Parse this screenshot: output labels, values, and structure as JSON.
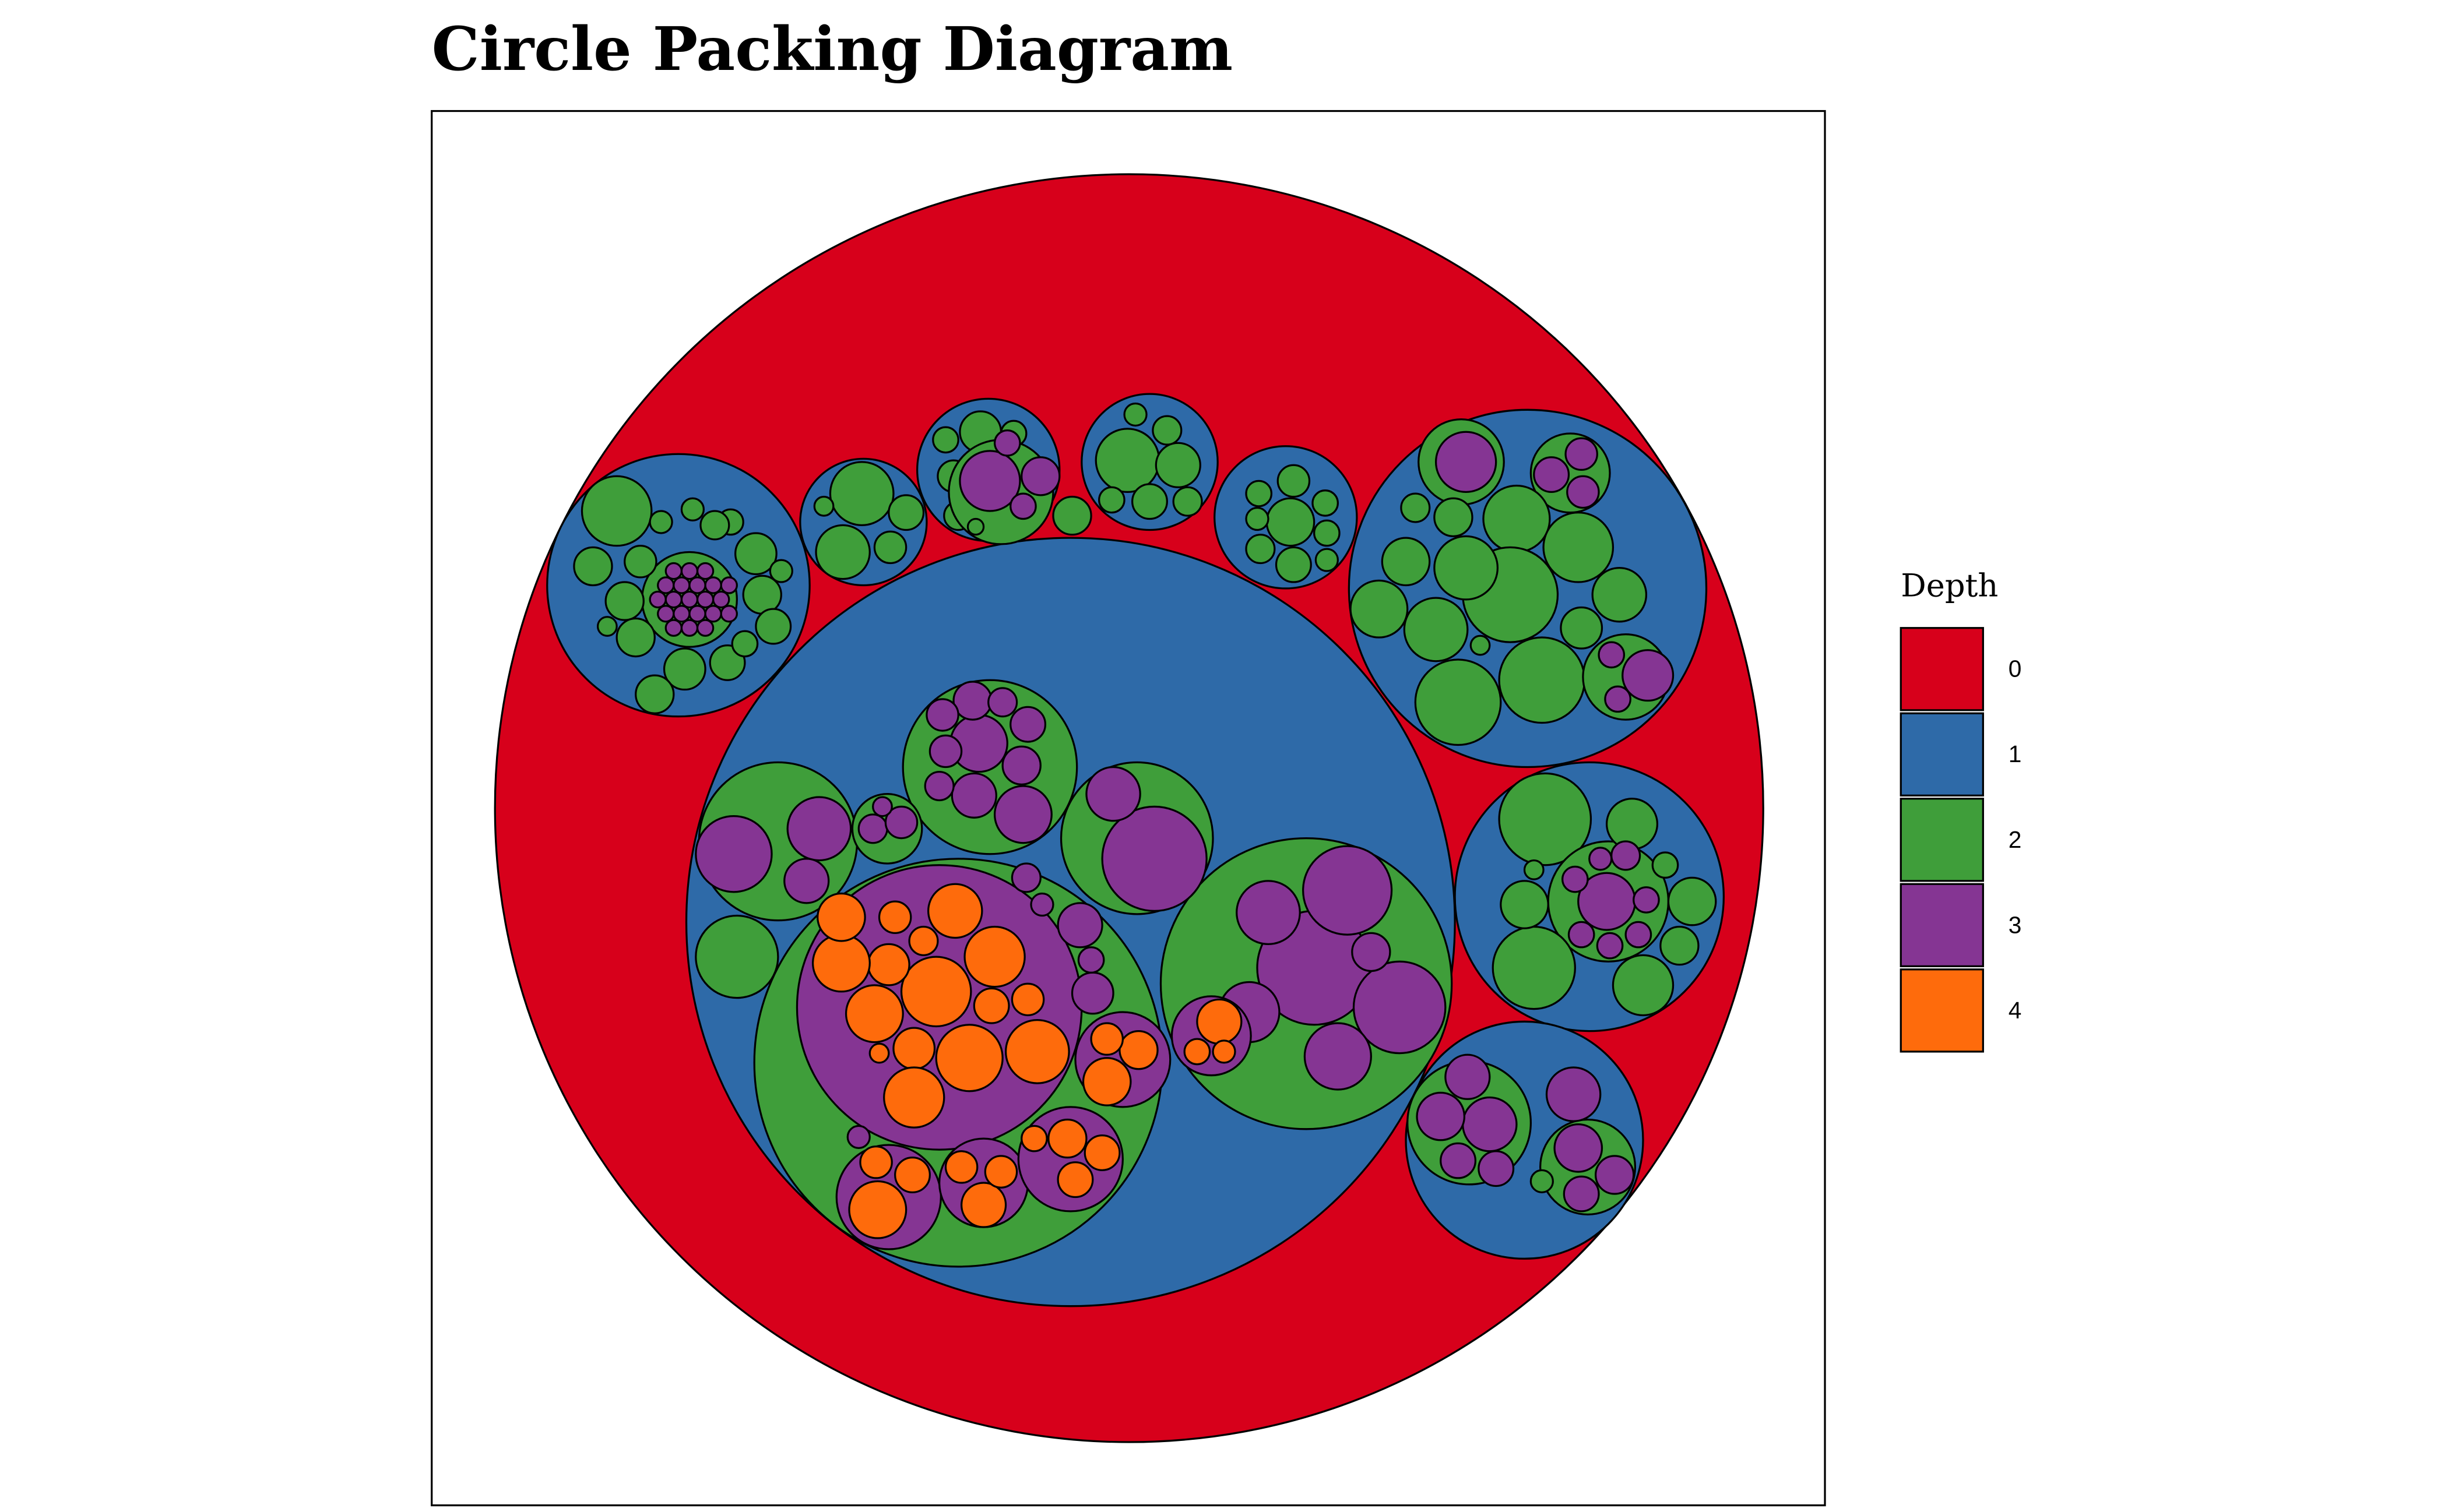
{
  "chart_data": {
    "type": "circle_packing",
    "title": "Circle Packing Diagram",
    "legend_title": "Depth",
    "categories": [
      "0",
      "1",
      "2",
      "3",
      "4"
    ],
    "colors": [
      "#d7001b",
      "#2e6aa8",
      "#3f9e3a",
      "#853593",
      "#fe6b0c"
    ]
  }
}
